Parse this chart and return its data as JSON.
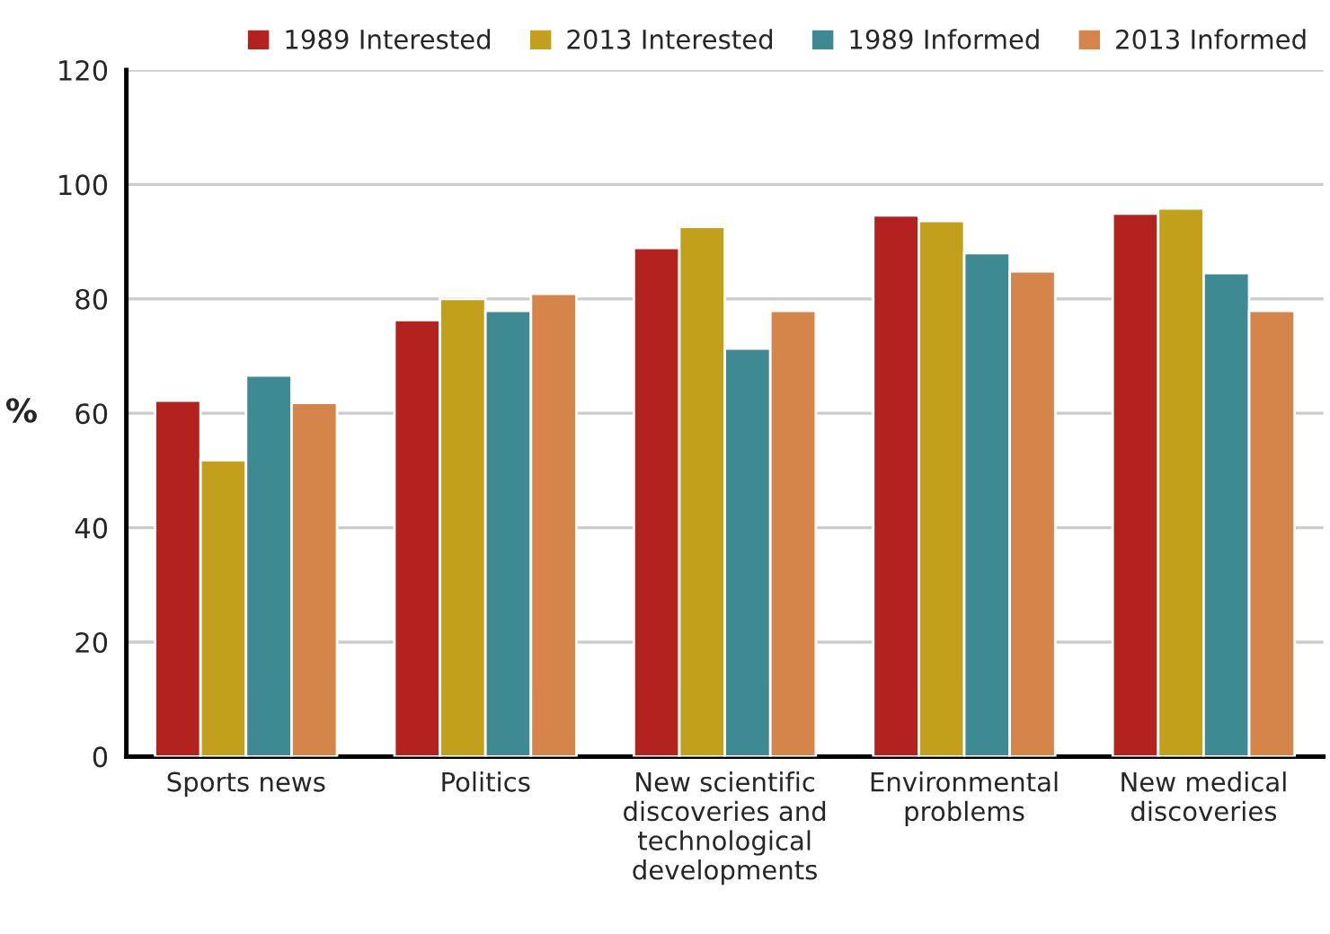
{
  "chart_data": {
    "type": "bar",
    "ylabel": "%",
    "categories": [
      "Sports news",
      "Politics",
      "New scientific discoveries and technological developments",
      "Environmental problems",
      "New medical discoveries"
    ],
    "series": [
      {
        "name": "1989 Interested",
        "color": "#b3221f",
        "values": [
          62.2,
          76.3,
          88.9,
          94.6,
          94.9
        ]
      },
      {
        "name": "2013 Interested",
        "color": "#c2a01c",
        "values": [
          51.8,
          80,
          92.6,
          93.6,
          95.8
        ]
      },
      {
        "name": "1989 Informed",
        "color": "#3e8a92",
        "values": [
          66.6,
          77.9,
          71.3,
          88,
          84.5
        ]
      },
      {
        "name": "2013 Informed",
        "color": "#d5844a",
        "values": [
          61.8,
          80.9,
          77.9,
          84.8,
          77.9
        ]
      }
    ],
    "ylim": [
      0,
      120
    ],
    "yticks": [
      0,
      20,
      40,
      60,
      80,
      100,
      120
    ],
    "grid": "y",
    "legend": "top"
  }
}
